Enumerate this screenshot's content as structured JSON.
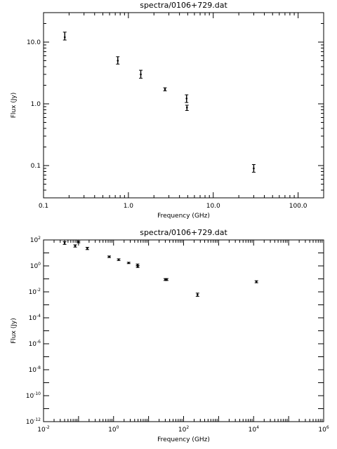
{
  "chart_data": [
    {
      "type": "scatter",
      "title": "spectra/0106+729.dat",
      "xlabel": "Frequency (GHz)",
      "ylabel": "Flux (Jy)",
      "xscale": "log",
      "yscale": "log",
      "xlim": [
        0.1,
        200
      ],
      "ylim": [
        0.03,
        30
      ],
      "grid": false,
      "xtick_labels": [
        {
          "v": 0.1,
          "label": "0.1"
        },
        {
          "v": 1,
          "label": "1.0"
        },
        {
          "v": 10,
          "label": "10.0"
        },
        {
          "v": 100,
          "label": "100.0"
        }
      ],
      "ytick_labels": [
        {
          "v": 0.1,
          "label": "0.1"
        },
        {
          "v": 1,
          "label": "1.0"
        },
        {
          "v": 10,
          "label": "10.0"
        }
      ],
      "points": [
        {
          "x": 0.178,
          "y": 12.0,
          "ylo": 10.8,
          "yhi": 14.5
        },
        {
          "x": 0.75,
          "y": 5.0,
          "ylo": 4.4,
          "yhi": 5.8
        },
        {
          "x": 1.4,
          "y": 3.0,
          "ylo": 2.6,
          "yhi": 3.5
        },
        {
          "x": 2.7,
          "y": 1.72,
          "ylo": 1.62,
          "yhi": 1.82
        },
        {
          "x": 4.85,
          "y": 1.22,
          "ylo": 1.05,
          "yhi": 1.4
        },
        {
          "x": 4.9,
          "y": 0.87,
          "ylo": 0.78,
          "yhi": 0.95
        },
        {
          "x": 30,
          "y": 0.09,
          "ylo": 0.078,
          "yhi": 0.104
        }
      ]
    },
    {
      "type": "scatter",
      "title": "spectra/0106+729.dat",
      "xlabel": "Frequency (GHz)",
      "ylabel": "Flux (Jy)",
      "xscale": "log",
      "yscale": "log",
      "xlim": [
        0.01,
        1000000
      ],
      "ylim": [
        1e-12,
        100
      ],
      "grid": false,
      "xtick_labels": [
        {
          "v": 0.01,
          "base": "10",
          "exp": "-2"
        },
        {
          "v": 1,
          "base": "10",
          "exp": "0"
        },
        {
          "v": 100,
          "base": "10",
          "exp": "2"
        },
        {
          "v": 10000,
          "base": "10",
          "exp": "4"
        },
        {
          "v": 1000000,
          "base": "10",
          "exp": "6"
        }
      ],
      "ytick_labels": [
        {
          "v": 1e-12,
          "base": "10",
          "exp": "-12"
        },
        {
          "v": 1e-10,
          "base": "10",
          "exp": "-10"
        },
        {
          "v": 1e-08,
          "base": "10",
          "exp": "-8"
        },
        {
          "v": 1e-06,
          "base": "10",
          "exp": "-6"
        },
        {
          "v": 0.0001,
          "base": "10",
          "exp": "-4"
        },
        {
          "v": 0.01,
          "base": "10",
          "exp": "-2"
        },
        {
          "v": 1,
          "base": "10",
          "exp": "0"
        },
        {
          "v": 100,
          "base": "10",
          "exp": "2"
        }
      ],
      "points": [
        {
          "x": 0.04,
          "y": 60,
          "ylo": 45,
          "yhi": 75
        },
        {
          "x": 0.08,
          "y": 35,
          "ylo": 28,
          "yhi": 42
        },
        {
          "x": 0.1,
          "y": 70,
          "ylo": 60,
          "yhi": 80
        },
        {
          "x": 0.178,
          "y": 22,
          "ylo": 18,
          "yhi": 27
        },
        {
          "x": 0.75,
          "y": 5.0,
          "ylo": 4.4,
          "yhi": 5.8
        },
        {
          "x": 1.4,
          "y": 3.0,
          "ylo": 2.6,
          "yhi": 3.5
        },
        {
          "x": 2.7,
          "y": 1.7,
          "ylo": 1.5,
          "yhi": 1.9
        },
        {
          "x": 4.85,
          "y": 1.2,
          "ylo": 1.0,
          "yhi": 1.4
        },
        {
          "x": 4.9,
          "y": 0.9,
          "ylo": 0.75,
          "yhi": 1.05
        },
        {
          "x": 30,
          "y": 0.09,
          "ylo": 0.075,
          "yhi": 0.105
        },
        {
          "x": 33,
          "y": 0.09,
          "ylo": 0.075,
          "yhi": 0.105
        },
        {
          "x": 250,
          "y": 0.006,
          "ylo": 0.0045,
          "yhi": 0.008
        },
        {
          "x": 12000,
          "y": 0.06,
          "ylo": 0.05,
          "yhi": 0.072
        }
      ]
    }
  ]
}
